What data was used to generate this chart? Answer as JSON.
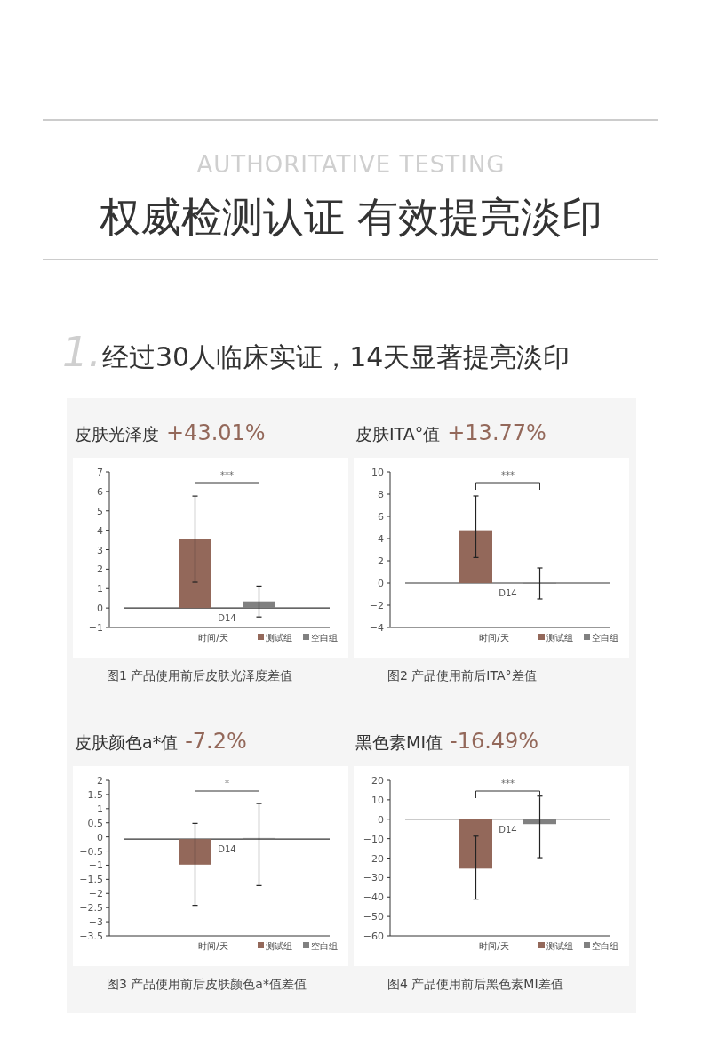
{
  "chart_data": [
    {
      "type": "other",
      "title": "权威检测认证 有效提亮淡印",
      "subtitle": "AUTHORITATIVE TESTING",
      "annotations": [
        "1.",
        "经过30人临床实证，14天显著提亮淡印"
      ]
    },
    {
      "type": "bar",
      "title": "皮肤光泽度",
      "subtitle": "+43.01%",
      "xlabel": "时间/天",
      "categories": [
        "D14"
      ],
      "series": [
        {
          "name": "测试组",
          "color": "#93685a",
          "values": [
            3.55
          ],
          "errors": [
            [
              1.33,
              5.76
            ]
          ]
        },
        {
          "name": "空白组",
          "color": "#808080",
          "values": [
            0.34
          ],
          "errors": [
            [
              -0.46,
              1.13
            ]
          ]
        }
      ],
      "ylim": [
        -1,
        7
      ],
      "yticks": [
        {
          "value": -1,
          "label": "−1"
        },
        0,
        1,
        2,
        3,
        4,
        5,
        6,
        7
      ],
      "ref_lines": [
        {
          "axis": "y",
          "value": 0
        }
      ],
      "legend": "bottom right",
      "annotations": [
        "***",
        "图1 产品使用前后皮肤光泽度差值"
      ]
    },
    {
      "type": "bar",
      "title": "皮肤ITA°值",
      "subtitle": "+13.77%",
      "xlabel": "时间/天",
      "categories": [
        "D14"
      ],
      "series": [
        {
          "name": "测试组",
          "color": "#93685a",
          "values": [
            4.75
          ],
          "errors": [
            [
              2.29,
              7.84
            ]
          ]
        },
        {
          "name": "空白组",
          "color": "#808080",
          "values": [
            0.02
          ],
          "errors": [
            [
              -1.44,
              1.36
            ]
          ]
        }
      ],
      "ylim": [
        -4,
        10
      ],
      "yticks": [
        {
          "value": -4,
          "label": "−4"
        },
        {
          "value": -2,
          "label": "−2"
        },
        0,
        2,
        4,
        6,
        8,
        10
      ],
      "ref_lines": [
        {
          "axis": "y",
          "value": 0
        }
      ],
      "legend": "bottom right",
      "annotations": [
        "***",
        "图2 产品使用前后ITA°差值"
      ]
    },
    {
      "type": "bar",
      "title": "皮肤颜色a*值",
      "subtitle": "-7.2%",
      "xlabel": "时间/天",
      "categories": [
        "D14"
      ],
      "series": [
        {
          "name": "测试组",
          "color": "#93685a",
          "values": [
            -0.9
          ],
          "base": [
            -0.08
          ],
          "errors": [
            [
              -2.42,
              0.48
            ]
          ]
        },
        {
          "name": "空白组",
          "color": "#808080",
          "values": [
            0.04
          ],
          "base": [
            -0.08
          ],
          "errors": [
            [
              -1.72,
              1.18
            ]
          ]
        }
      ],
      "ylim": [
        -3.5,
        2
      ],
      "yticks": [
        {
          "value": -3.5,
          "label": "−3.5"
        },
        {
          "value": -3,
          "label": "−3"
        },
        {
          "value": -2.5,
          "label": "−2.5"
        },
        {
          "value": -2,
          "label": "−2"
        },
        {
          "value": -1.5,
          "label": "−1.5"
        },
        {
          "value": -1,
          "label": "−1"
        },
        {
          "value": -0.5,
          "label": "−0.5"
        },
        0,
        0.5,
        1,
        1.5,
        2
      ],
      "ref_lines": [
        {
          "axis": "y",
          "value": -0.08
        }
      ],
      "legend": "bottom right",
      "annotations": [
        "*",
        "图3 产品使用前后皮肤颜色a*值差值"
      ]
    },
    {
      "type": "bar",
      "title": "黑色素MI值",
      "subtitle": "-16.49%",
      "xlabel": "时间/天",
      "categories": [
        "D14"
      ],
      "series": [
        {
          "name": "测试组",
          "color": "#93685a",
          "values": [
            -25.4
          ],
          "errors": [
            [
              -41.1,
              -8.7
            ]
          ]
        },
        {
          "name": "空白组",
          "color": "#808080",
          "values": [
            -2.5
          ],
          "errors": [
            [
              -19.8,
              11.9
            ]
          ]
        }
      ],
      "ylim": [
        -60,
        20
      ],
      "yticks": [
        {
          "value": -60,
          "label": "−60"
        },
        {
          "value": -50,
          "label": "−50"
        },
        {
          "value": -40,
          "label": "−40"
        },
        {
          "value": -30,
          "label": "−30"
        },
        {
          "value": -20,
          "label": "−20"
        },
        {
          "value": -10,
          "label": "−10"
        },
        0,
        10,
        20
      ],
      "ref_lines": [
        {
          "axis": "y",
          "value": 0
        }
      ],
      "legend": "bottom right",
      "annotations": [
        "***",
        "图4 产品使用前后黑色素MI差值"
      ]
    }
  ]
}
